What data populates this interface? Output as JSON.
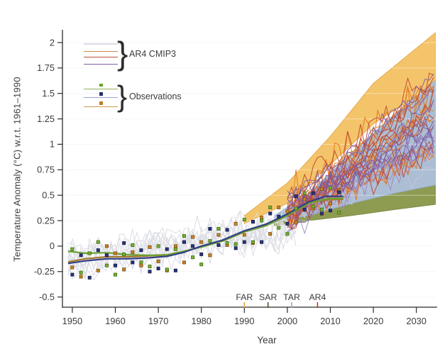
{
  "chart_data": {
    "type": "line",
    "title": "",
    "xlabel": "Year",
    "ylabel": "Temperature Anomaly (°C) w.r.t. 1961–1990",
    "xlim": [
      1947.7,
      2034.5
    ],
    "ylim": [
      -0.6,
      2.167
    ],
    "x_ticks": [
      1950,
      1960,
      1970,
      1980,
      1990,
      2000,
      2010,
      2020,
      2030
    ],
    "y_ticks": [
      2,
      1.75,
      1.5,
      1.25,
      1,
      0.75,
      0.5,
      0.25,
      0,
      -0.25,
      -0.5
    ],
    "y_tick_labels": [
      "2",
      "1.75",
      "1.5",
      "1.25",
      "1",
      "0.75",
      "0.5",
      "0.25",
      "0",
      "-0.25",
      "-0.5"
    ],
    "legend": {
      "ar4_label": "AR4 CMIP3",
      "obs_label": "Observations",
      "brace": "}",
      "ar4_line_colors": [
        "#dbdbe9",
        "#cb8a4d",
        "#bc4f3a",
        "#7d61a4"
      ],
      "obs_entries": [
        {
          "line": "#92b158",
          "dot": "#69a22b"
        },
        {
          "line": "#99a3d5",
          "dot": "#232e70"
        },
        {
          "line": "#cb9a52",
          "dot": "#bf7c2a"
        }
      ]
    },
    "assessments": [
      {
        "label": "FAR",
        "year": 1990,
        "color": "#e2a33b"
      },
      {
        "label": "SAR",
        "year": 1995.5,
        "color": "#47532f"
      },
      {
        "label": "TAR",
        "year": 2001,
        "color": "#8badd6"
      },
      {
        "label": "AR4",
        "year": 2007,
        "color": "#c23b2b"
      }
    ],
    "bands": [
      {
        "name": "SAR projected range",
        "color": "#8e9c52",
        "edge": "#76843e",
        "top": [
          [
            1997,
            0.26
          ],
          [
            2005,
            0.34
          ],
          [
            2015,
            0.45
          ],
          [
            2025,
            0.55
          ],
          [
            2034.5,
            0.66
          ]
        ],
        "bottom": [
          [
            1997,
            0.2
          ],
          [
            2005,
            0.25
          ],
          [
            2015,
            0.3
          ],
          [
            2025,
            0.36
          ],
          [
            2034.5,
            0.41
          ]
        ]
      },
      {
        "name": "FAR projected range",
        "color": "#f4c46a",
        "edge": "#e19f3d",
        "top": [
          [
            1990,
            0.3
          ],
          [
            2000,
            0.62
          ],
          [
            2010,
            1.08
          ],
          [
            2020,
            1.6
          ],
          [
            2034.5,
            2.1
          ]
        ],
        "bottom": [
          [
            1990,
            0.22
          ],
          [
            2000,
            0.42
          ],
          [
            2010,
            0.8
          ],
          [
            2020,
            1.2
          ],
          [
            2034.5,
            1.6
          ]
        ]
      },
      {
        "name": "TAR projected range",
        "color": "#abbed3",
        "edge": "#91a7c2",
        "top": [
          [
            1997,
            0.3
          ],
          [
            2005,
            0.52
          ],
          [
            2015,
            0.92
          ],
          [
            2025,
            1.3
          ],
          [
            2034.5,
            1.63
          ]
        ],
        "bottom": [
          [
            1997,
            0.24
          ],
          [
            2005,
            0.3
          ],
          [
            2015,
            0.42
          ],
          [
            2025,
            0.52
          ],
          [
            2034.5,
            0.6
          ]
        ]
      }
    ],
    "observations": {
      "series": [
        {
          "id": "obs-brown",
          "line_color": "#a3792e",
          "marker_fill": "#cc8322",
          "marker_edge": "#7a4d10",
          "smooth": [
            [
              1949,
              -0.155
            ],
            [
              1953,
              -0.125
            ],
            [
              1958,
              -0.105
            ],
            [
              1963,
              -0.105
            ],
            [
              1968,
              -0.095
            ],
            [
              1972,
              -0.09
            ],
            [
              1976,
              -0.055
            ],
            [
              1980,
              -0.005
            ],
            [
              1985,
              0.05
            ],
            [
              1990,
              0.14
            ],
            [
              1995,
              0.2
            ],
            [
              2000,
              0.3
            ],
            [
              2005,
              0.42
            ],
            [
              2009,
              0.455
            ],
            [
              2013,
              0.46
            ]
          ],
          "markers": [
            [
              1950,
              -0.21
            ],
            [
              1952,
              -0.3
            ],
            [
              1954,
              -0.07
            ],
            [
              1956,
              -0.24
            ],
            [
              1958,
              0.0
            ],
            [
              1960,
              -0.07
            ],
            [
              1962,
              -0.23
            ],
            [
              1964,
              -0.06
            ],
            [
              1966,
              -0.19
            ],
            [
              1968,
              -0.01
            ],
            [
              1970,
              -0.15
            ],
            [
              1972,
              -0.24
            ],
            [
              1974,
              0.0
            ],
            [
              1976,
              -0.16
            ],
            [
              1978,
              0.09
            ],
            [
              1980,
              0.04
            ],
            [
              1982,
              -0.09
            ],
            [
              1984,
              0.11
            ],
            [
              1986,
              0.01
            ],
            [
              1988,
              0.22
            ],
            [
              1990,
              0.11
            ],
            [
              1992,
              0.03
            ],
            [
              1994,
              0.28
            ],
            [
              1996,
              0.12
            ],
            [
              1998,
              0.38
            ],
            [
              2000,
              0.34
            ],
            [
              2002,
              0.23
            ],
            [
              2004,
              0.46
            ],
            [
              2006,
              0.37
            ],
            [
              2008,
              0.56
            ],
            [
              2010,
              0.42
            ],
            [
              2012,
              0.55
            ]
          ]
        },
        {
          "id": "obs-green",
          "line_color": "#6ca234",
          "marker_fill": "#7ab02f",
          "marker_edge": "#3c6a12",
          "smooth": [
            [
              1949,
              -0.05
            ],
            [
              1953,
              -0.07
            ],
            [
              1958,
              -0.065
            ],
            [
              1963,
              -0.085
            ],
            [
              1968,
              -0.09
            ],
            [
              1972,
              -0.085
            ],
            [
              1976,
              -0.05
            ],
            [
              1980,
              -0.01
            ],
            [
              1985,
              0.05
            ],
            [
              1990,
              0.14
            ],
            [
              1995,
              0.2
            ],
            [
              2000,
              0.3
            ],
            [
              2005,
              0.42
            ],
            [
              2009,
              0.465
            ],
            [
              2013,
              0.47
            ]
          ],
          "markers": [
            [
              1950,
              -0.03
            ],
            [
              1952,
              -0.26
            ],
            [
              1954,
              -0.07
            ],
            [
              1956,
              0.04
            ],
            [
              1958,
              -0.19
            ],
            [
              1960,
              -0.28
            ],
            [
              1962,
              -0.08
            ],
            [
              1964,
              0.01
            ],
            [
              1966,
              -0.16
            ],
            [
              1968,
              -0.2
            ],
            [
              1970,
              0.0
            ],
            [
              1972,
              -0.23
            ],
            [
              1974,
              -0.03
            ],
            [
              1976,
              0.1
            ],
            [
              1978,
              -0.11
            ],
            [
              1980,
              -0.18
            ],
            [
              1982,
              0.05
            ],
            [
              1984,
              0.17
            ],
            [
              1986,
              0.03
            ],
            [
              1988,
              0.02
            ],
            [
              1990,
              0.26
            ],
            [
              1992,
              0.04
            ],
            [
              1994,
              0.25
            ],
            [
              1996,
              0.38
            ],
            [
              1998,
              0.18
            ],
            [
              2000,
              0.12
            ],
            [
              2002,
              0.37
            ],
            [
              2004,
              0.52
            ],
            [
              2006,
              0.39
            ],
            [
              2008,
              0.36
            ],
            [
              2010,
              0.57
            ],
            [
              2012,
              0.33
            ]
          ]
        },
        {
          "id": "obs-blue",
          "line_color": "#323f85",
          "marker_fill": "#2a357c",
          "marker_edge": "#131b4a",
          "smooth": [
            [
              1949,
              -0.17
            ],
            [
              1953,
              -0.145
            ],
            [
              1958,
              -0.125
            ],
            [
              1963,
              -0.125
            ],
            [
              1968,
              -0.115
            ],
            [
              1972,
              -0.1
            ],
            [
              1976,
              -0.06
            ],
            [
              1980,
              0.0
            ],
            [
              1985,
              0.06
            ],
            [
              1990,
              0.15
            ],
            [
              1995,
              0.215
            ],
            [
              2000,
              0.315
            ],
            [
              2005,
              0.435
            ],
            [
              2009,
              0.49
            ],
            [
              2013,
              0.49
            ]
          ],
          "markers": [
            [
              1950,
              -0.28
            ],
            [
              1952,
              -0.09
            ],
            [
              1954,
              -0.31
            ],
            [
              1956,
              -0.04
            ],
            [
              1958,
              -0.09
            ],
            [
              1960,
              -0.19
            ],
            [
              1962,
              0.03
            ],
            [
              1964,
              -0.16
            ],
            [
              1966,
              -0.04
            ],
            [
              1968,
              -0.25
            ],
            [
              1970,
              -0.22
            ],
            [
              1972,
              -0.03
            ],
            [
              1974,
              -0.24
            ],
            [
              1976,
              0.04
            ],
            [
              1978,
              0.0
            ],
            [
              1980,
              -0.08
            ],
            [
              1982,
              0.17
            ],
            [
              1984,
              0.01
            ],
            [
              1986,
              0.16
            ],
            [
              1988,
              -0.02
            ],
            [
              1990,
              0.04
            ],
            [
              1992,
              0.24
            ],
            [
              1994,
              0.04
            ],
            [
              1996,
              0.32
            ],
            [
              1998,
              0.29
            ],
            [
              2000,
              0.22
            ],
            [
              2002,
              0.49
            ],
            [
              2004,
              0.36
            ],
            [
              2006,
              0.52
            ],
            [
              2008,
              0.32
            ],
            [
              2010,
              0.35
            ],
            [
              2012,
              0.53
            ]
          ]
        }
      ]
    },
    "model_runs": {
      "historical": {
        "count": 13,
        "color": "#dcdde4",
        "width": 1,
        "year_start": 1949,
        "year_end": 2002,
        "value_start": -0.13,
        "value_end": 0.2,
        "bias": 0.1,
        "noise": 0.2,
        "seed": 11
      },
      "projections": {
        "year_start": 2000,
        "year_end": 2034.5,
        "width": 1,
        "start_range": [
          0.18,
          0.5
        ],
        "noise_range": [
          0.09,
          0.24
        ],
        "seed": 47,
        "groups": [
          {
            "color": "#c9c2de",
            "count": 3,
            "end_range": [
              0.7,
              1.3
            ]
          },
          {
            "color": "#a089c2",
            "count": 5,
            "end_range": [
              0.8,
              1.5
            ]
          },
          {
            "color": "#e2741e",
            "count": 10,
            "end_range": [
              0.68,
              1.62
            ]
          },
          {
            "color": "#bf4430",
            "count": 9,
            "end_range": [
              0.75,
              1.72
            ]
          },
          {
            "color": "#7c5ca6",
            "count": 9,
            "end_range": [
              0.9,
              1.8
            ]
          }
        ]
      }
    }
  }
}
